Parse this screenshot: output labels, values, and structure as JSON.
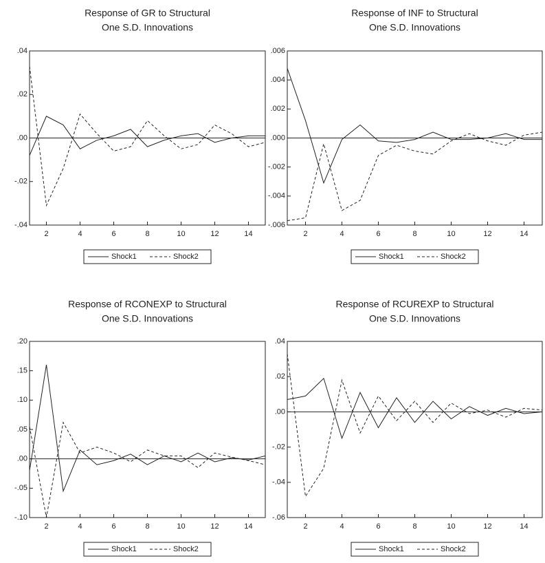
{
  "chart_data": [
    {
      "type": "line",
      "title": [
        "Response of GR to Structural",
        "One S.D. Innovations"
      ],
      "x": [
        1,
        2,
        3,
        4,
        5,
        6,
        7,
        8,
        9,
        10,
        11,
        12,
        13,
        14,
        15
      ],
      "xlim": [
        1,
        15
      ],
      "xticks": [
        2,
        4,
        6,
        8,
        10,
        12,
        14
      ],
      "ylim": [
        -0.04,
        0.04
      ],
      "yticks": [
        {
          "value": -0.04,
          "label": "-.04"
        },
        {
          "value": -0.02,
          "label": "-.02"
        },
        {
          "value": 0,
          "label": ".00"
        },
        {
          "value": 0.02,
          "label": ".02"
        },
        {
          "value": 0.04,
          "label": ".04"
        }
      ],
      "legend": "bottom",
      "series": [
        {
          "name": "Shock1",
          "color": "#222222",
          "dash": "solid",
          "values": [
            -0.008,
            0.01,
            0.006,
            -0.005,
            -0.001,
            0.001,
            0.004,
            -0.004,
            -0.001,
            0.001,
            0.002,
            -0.002,
            0.0,
            0.001,
            0.001
          ]
        },
        {
          "name": "Shock2",
          "color": "#222222",
          "dash": "dashed",
          "values": [
            0.033,
            -0.031,
            -0.014,
            0.011,
            0.002,
            -0.006,
            -0.004,
            0.008,
            0.001,
            -0.005,
            -0.003,
            0.006,
            0.002,
            -0.004,
            -0.002
          ]
        }
      ]
    },
    {
      "type": "line",
      "title": [
        "Response of INF to Structural",
        "One S.D. Innovations"
      ],
      "x": [
        1,
        2,
        3,
        4,
        5,
        6,
        7,
        8,
        9,
        10,
        11,
        12,
        13,
        14,
        15
      ],
      "xlim": [
        1,
        15
      ],
      "xticks": [
        2,
        4,
        6,
        8,
        10,
        12,
        14
      ],
      "ylim": [
        -0.006,
        0.006
      ],
      "yticks": [
        {
          "value": -0.006,
          "label": "-.006"
        },
        {
          "value": -0.004,
          "label": "-.004"
        },
        {
          "value": -0.002,
          "label": "-.002"
        },
        {
          "value": 0,
          "label": ".000"
        },
        {
          "value": 0.002,
          "label": ".002"
        },
        {
          "value": 0.004,
          "label": ".004"
        },
        {
          "value": 0.006,
          "label": ".006"
        }
      ],
      "legend": "bottom",
      "series": [
        {
          "name": "Shock1",
          "color": "#222222",
          "dash": "solid",
          "values": [
            0.0048,
            0.0012,
            -0.0031,
            -0.0001,
            0.0009,
            -0.0002,
            -0.0003,
            -0.0001,
            0.0004,
            -0.0001,
            -0.0001,
            0.0,
            0.0003,
            -0.0001,
            -0.0001
          ]
        },
        {
          "name": "Shock2",
          "color": "#222222",
          "dash": "dashed",
          "values": [
            -0.0057,
            -0.0055,
            -0.0004,
            -0.005,
            -0.0043,
            -0.0012,
            -0.0005,
            -0.0009,
            -0.0011,
            -0.0002,
            0.0003,
            -0.0002,
            -0.0005,
            0.0002,
            0.0004
          ]
        }
      ]
    },
    {
      "type": "line",
      "title": [
        "Response of RCONEXP to Structural",
        "One S.D. Innovations"
      ],
      "x": [
        1,
        2,
        3,
        4,
        5,
        6,
        7,
        8,
        9,
        10,
        11,
        12,
        13,
        14,
        15
      ],
      "xlim": [
        1,
        15
      ],
      "xticks": [
        2,
        4,
        6,
        8,
        10,
        12,
        14
      ],
      "ylim": [
        -0.1,
        0.2
      ],
      "yticks": [
        {
          "value": -0.1,
          "label": "-.10"
        },
        {
          "value": -0.05,
          "label": "-.05"
        },
        {
          "value": 0,
          "label": ".00"
        },
        {
          "value": 0.05,
          "label": ".05"
        },
        {
          "value": 0.1,
          "label": ".10"
        },
        {
          "value": 0.15,
          "label": ".15"
        },
        {
          "value": 0.2,
          "label": ".20"
        }
      ],
      "legend": "bottom",
      "series": [
        {
          "name": "Shock1",
          "color": "#222222",
          "dash": "solid",
          "values": [
            -0.02,
            0.16,
            -0.055,
            0.015,
            -0.01,
            -0.003,
            0.008,
            -0.01,
            0.005,
            -0.005,
            0.01,
            -0.005,
            0.002,
            -0.002,
            0.005
          ]
        },
        {
          "name": "Shock2",
          "color": "#222222",
          "dash": "dashed",
          "values": [
            0.055,
            -0.1,
            0.062,
            0.01,
            0.02,
            0.01,
            -0.005,
            0.015,
            0.005,
            0.005,
            -0.015,
            0.01,
            0.003,
            -0.003,
            -0.01
          ]
        }
      ]
    },
    {
      "type": "line",
      "title": [
        "Response of RCUREXP to Structural",
        "One S.D. Innovations"
      ],
      "x": [
        1,
        2,
        3,
        4,
        5,
        6,
        7,
        8,
        9,
        10,
        11,
        12,
        13,
        14,
        15
      ],
      "xlim": [
        1,
        15
      ],
      "xticks": [
        2,
        4,
        6,
        8,
        10,
        12,
        14
      ],
      "ylim": [
        -0.06,
        0.04
      ],
      "yticks": [
        {
          "value": -0.06,
          "label": "-.06"
        },
        {
          "value": -0.04,
          "label": "-.04"
        },
        {
          "value": -0.02,
          "label": "-.02"
        },
        {
          "value": 0,
          "label": ".00"
        },
        {
          "value": 0.02,
          "label": ".02"
        },
        {
          "value": 0.04,
          "label": ".04"
        }
      ],
      "legend": "bottom",
      "series": [
        {
          "name": "Shock1",
          "color": "#222222",
          "dash": "solid",
          "values": [
            0.007,
            0.009,
            0.019,
            -0.015,
            0.011,
            -0.009,
            0.008,
            -0.006,
            0.006,
            -0.004,
            0.003,
            -0.002,
            0.002,
            -0.001,
            0.0
          ]
        },
        {
          "name": "Shock2",
          "color": "#222222",
          "dash": "dashed",
          "values": [
            0.033,
            -0.048,
            -0.032,
            0.018,
            -0.012,
            0.009,
            -0.005,
            0.006,
            -0.006,
            0.005,
            -0.001,
            0.001,
            -0.003,
            0.002,
            0.001
          ]
        }
      ]
    }
  ]
}
